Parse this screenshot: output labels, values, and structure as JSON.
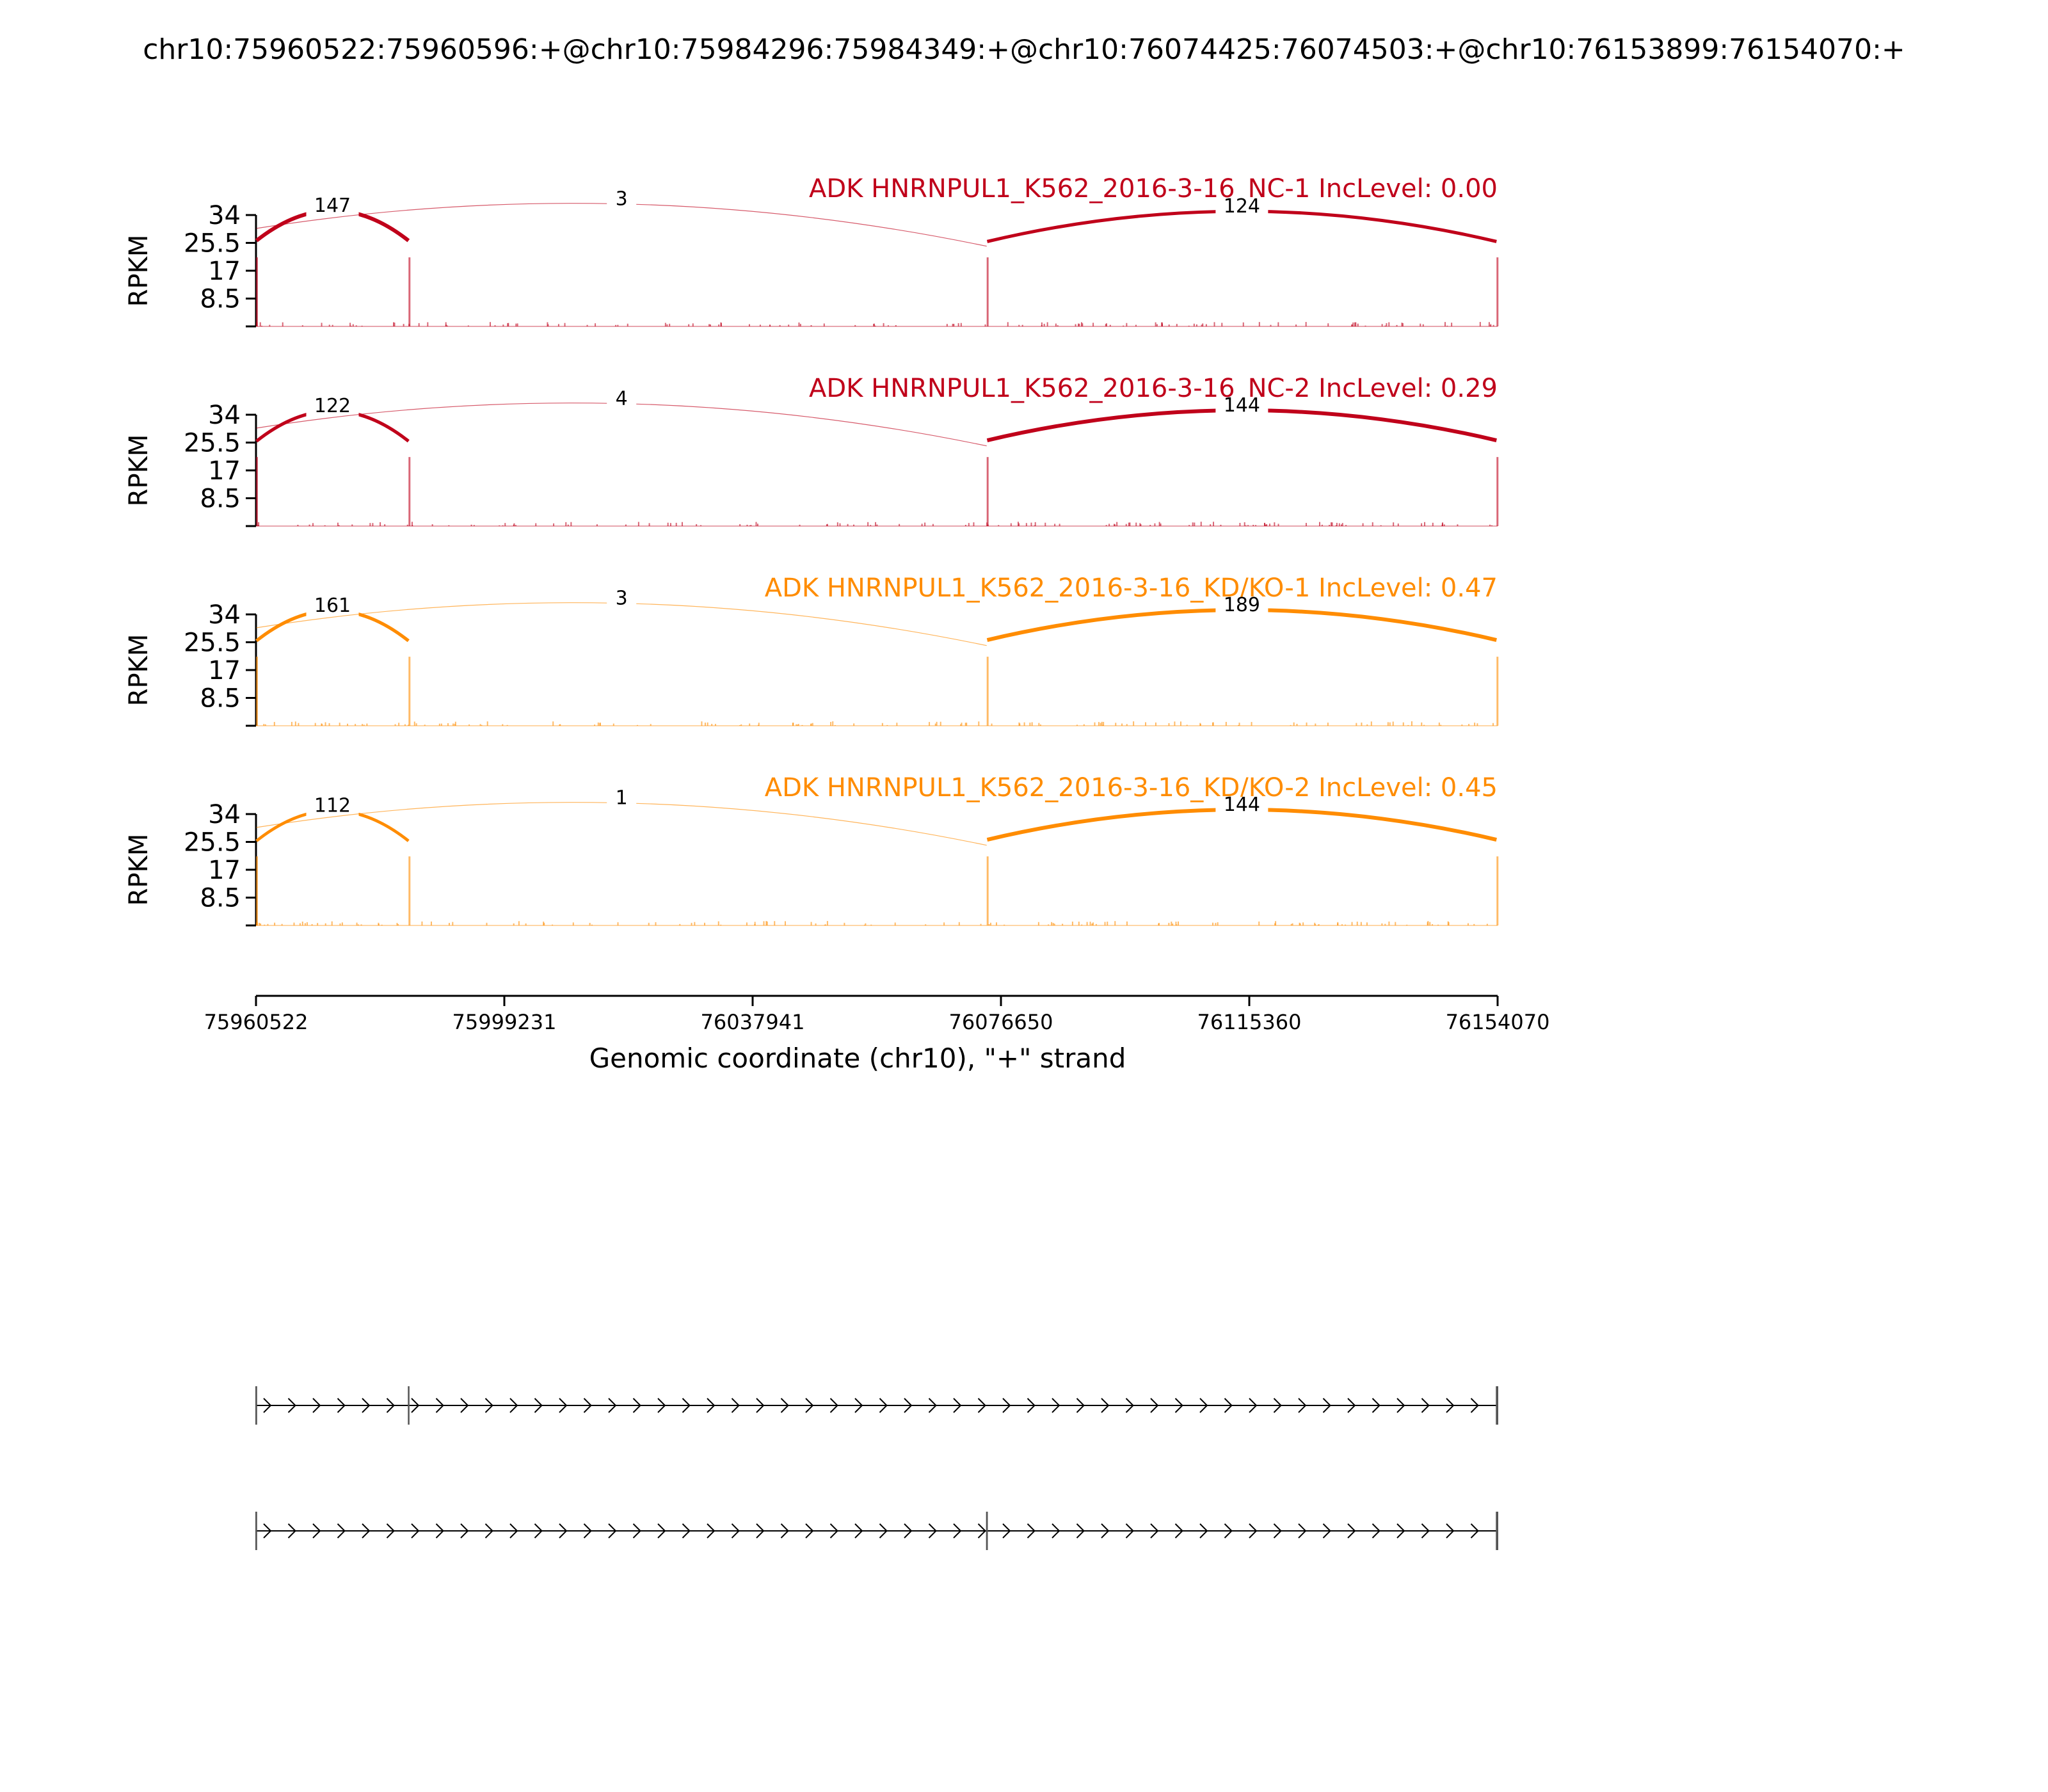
{
  "figure": {
    "title": "chr10:75960522:75960596:+@chr10:75984296:75984349:+@chr10:76074425:76074503:+@chr10:76153899:76154070:+"
  },
  "chart_data": {
    "type": "sashimi",
    "x_axis": {
      "label": "Genomic coordinate (chr10), \"+\" strand",
      "range": [
        75960522,
        76154070
      ],
      "ticks": [
        75960522,
        75999231,
        76037941,
        76076650,
        76115360,
        76154070
      ],
      "tick_labels": [
        "75960522",
        "75999231",
        "76037941",
        "76076650",
        "76115360",
        "76154070"
      ]
    },
    "y_axis": {
      "label": "RPKM",
      "range": [
        0,
        34
      ],
      "ticks": [
        8.5,
        17,
        25.5,
        34
      ],
      "tick_labels": [
        "8.5",
        "17",
        "25.5",
        "34"
      ]
    },
    "exons": [
      {
        "start": 75960522,
        "end": 75960596
      },
      {
        "start": 75984296,
        "end": 75984349
      },
      {
        "start": 76074425,
        "end": 76074503
      },
      {
        "start": 76153899,
        "end": 76154070
      }
    ],
    "tracks": [
      {
        "name": "ADK HNRNPUL1_K562_2016-3-16_NC-1 IncLevel: 0.00",
        "color": "#C0001A",
        "group": "NC",
        "junctions": [
          {
            "from": 75960596,
            "to": 75984296,
            "count": 147
          },
          {
            "from": 75960596,
            "to": 76074425,
            "count": 3
          },
          {
            "from": 76074503,
            "to": 76153899,
            "count": 124
          }
        ]
      },
      {
        "name": "ADK HNRNPUL1_K562_2016-3-16_NC-2 IncLevel: 0.29",
        "color": "#C0001A",
        "group": "NC",
        "junctions": [
          {
            "from": 75960596,
            "to": 75984296,
            "count": 122
          },
          {
            "from": 75960596,
            "to": 76074425,
            "count": 4
          },
          {
            "from": 76074503,
            "to": 76153899,
            "count": 144
          }
        ]
      },
      {
        "name": "ADK HNRNPUL1_K562_2016-3-16_KD/KO-1 IncLevel: 0.47",
        "color": "#FF8C00",
        "group": "KD/KO",
        "junctions": [
          {
            "from": 75960596,
            "to": 75984296,
            "count": 161
          },
          {
            "from": 75960596,
            "to": 76074425,
            "count": 3
          },
          {
            "from": 76074503,
            "to": 76153899,
            "count": 189
          }
        ]
      },
      {
        "name": "ADK HNRNPUL1_K562_2016-3-16_KD/KO-2 IncLevel: 0.45",
        "color": "#FF8C00",
        "group": "KD/KO",
        "junctions": [
          {
            "from": 75960596,
            "to": 75984296,
            "count": 112
          },
          {
            "from": 75960596,
            "to": 76074425,
            "count": 1
          },
          {
            "from": 76074503,
            "to": 76153899,
            "count": 144
          }
        ]
      }
    ],
    "isoforms": [
      {
        "introns": [
          [
            75960596,
            75984296
          ],
          [
            75984349,
            76153899
          ]
        ]
      },
      {
        "introns": [
          [
            75960596,
            76074425
          ],
          [
            76074503,
            76153899
          ]
        ]
      }
    ],
    "grid": false,
    "legend": "none"
  }
}
